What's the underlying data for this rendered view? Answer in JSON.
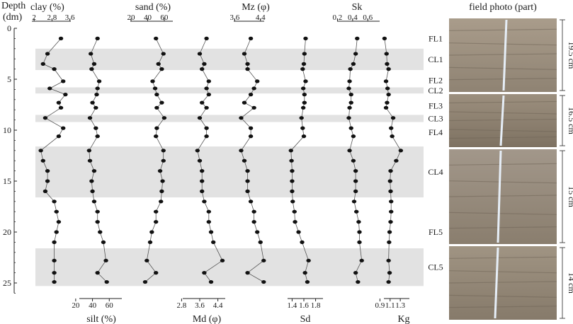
{
  "figure": {
    "depth_label_line1": "Depth",
    "depth_label_line2": "(dm)",
    "photo_title": "field photo (part)"
  },
  "chart_data": {
    "type": "line",
    "y": {
      "label": "Depth (dm)",
      "range": [
        0,
        26
      ],
      "ticks": [
        0,
        5,
        10,
        15,
        20,
        25
      ],
      "reversed": true
    },
    "depth": [
      1,
      2.5,
      3.5,
      4,
      5.2,
      5.9,
      6.5,
      7.3,
      7.8,
      8.8,
      9.8,
      10.6,
      12,
      13,
      14,
      15,
      16,
      17,
      18,
      19,
      20,
      21,
      22.8,
      24,
      24.9
    ],
    "bands": [
      {
        "label": "FL1",
        "depth": 1,
        "shaded": false
      },
      {
        "label": "CL1",
        "from": 2,
        "to": 4.1,
        "shaded": true
      },
      {
        "label": "FL2",
        "depth": 5.1,
        "shaded": false
      },
      {
        "label": "CL2",
        "from": 5.8,
        "to": 6.4,
        "shaded": true
      },
      {
        "label": "FL3",
        "depth": 7.6,
        "shaded": false
      },
      {
        "label": "CL3",
        "from": 8.5,
        "to": 9.2,
        "shaded": true
      },
      {
        "label": "FL4",
        "depth": 10.2,
        "shaded": false
      },
      {
        "label": "CL4",
        "from": 11.6,
        "to": 16.6,
        "shaded": true
      },
      {
        "label": "FL5",
        "depth": 20,
        "shaded": false
      },
      {
        "label": "CL5",
        "from": 21.6,
        "to": 25.3,
        "shaded": true
      }
    ],
    "panels": [
      {
        "key": "clay",
        "label": "clay (%)",
        "axis_pos": "top",
        "range": [
          1.9,
          3.8
        ],
        "ticks": [
          2,
          2.8,
          3.6
        ],
        "tick_labels": [
          "2",
          "2.8",
          "3.6"
        ],
        "values": [
          3.2,
          2.6,
          2.4,
          2.9,
          3.3,
          2.7,
          3.4,
          3.1,
          3.2,
          2.5,
          3.3,
          3.1,
          2.3,
          2.4,
          2.6,
          2.6,
          2.5,
          2.9,
          3.0,
          3.1,
          3.0,
          2.9,
          2.9,
          2.9,
          2.9
        ]
      },
      {
        "key": "silt",
        "label": "silt (%)",
        "axis_pos": "bottom",
        "range": [
          10,
          80
        ],
        "ticks": [
          20,
          40,
          60
        ],
        "tick_labels": [
          "20",
          "40",
          "60"
        ],
        "values": [
          46,
          38,
          42,
          39,
          48,
          46,
          45,
          40,
          44,
          37,
          44,
          46,
          36,
          37,
          42,
          39,
          40,
          42,
          46,
          46,
          49,
          53,
          56,
          46,
          57
        ]
      },
      {
        "key": "sand",
        "label": "sand (%)",
        "axis_pos": "top",
        "range": [
          14,
          78
        ],
        "ticks": [
          20,
          40,
          60
        ],
        "tick_labels": [
          "20",
          "40",
          "60"
        ],
        "values": [
          50,
          59,
          53,
          57,
          46,
          49,
          51,
          57,
          51,
          60,
          51,
          50,
          59,
          59,
          55,
          58,
          57,
          56,
          50,
          50,
          45,
          43,
          39,
          50,
          37
        ]
      },
      {
        "key": "md",
        "label": "Md (φ)",
        "axis_pos": "bottom",
        "range": [
          2.6,
          5.1
        ],
        "ticks": [
          2.8,
          3.6,
          4.4
        ],
        "tick_labels": [
          "2.8",
          "3.6",
          "4.4"
        ],
        "values": [
          3.9,
          3.6,
          3.8,
          3.7,
          4.0,
          3.9,
          4.0,
          3.7,
          3.9,
          3.6,
          3.9,
          3.9,
          3.5,
          3.6,
          3.7,
          3.7,
          3.7,
          3.8,
          4.0,
          4.0,
          4.1,
          4.2,
          4.6,
          3.8,
          4.1
        ]
      },
      {
        "key": "mz",
        "label": "Mz (φ)",
        "axis_pos": "top",
        "range": [
          3.35,
          5.0
        ],
        "ticks": [
          3.6,
          4.4
        ],
        "tick_labels": [
          "3.6",
          "4.4"
        ],
        "values": [
          4.1,
          3.9,
          4.0,
          4.0,
          4.3,
          4.2,
          4.1,
          3.9,
          4.2,
          3.8,
          4.1,
          4.1,
          3.8,
          3.9,
          4.0,
          4.0,
          4.0,
          4.1,
          4.2,
          4.2,
          4.3,
          4.4,
          4.5,
          4.0,
          4.5
        ]
      },
      {
        "key": "sd",
        "label": "Sd",
        "axis_pos": "bottom",
        "range": [
          1.25,
          1.95
        ],
        "ticks": [
          1.4,
          1.6,
          1.8
        ],
        "tick_labels": [
          "1.4",
          "1.6",
          "1.8"
        ],
        "values": [
          1.63,
          1.61,
          1.6,
          1.58,
          1.63,
          1.59,
          1.61,
          1.61,
          1.59,
          1.56,
          1.58,
          1.6,
          1.38,
          1.39,
          1.4,
          1.4,
          1.4,
          1.41,
          1.44,
          1.45,
          1.51,
          1.57,
          1.68,
          1.62,
          1.66
        ]
      },
      {
        "key": "sk",
        "label": "Sk",
        "axis_pos": "top",
        "range": [
          0.14,
          0.7
        ],
        "ticks": [
          0.2,
          0.4,
          0.6
        ],
        "tick_labels": [
          "0.2",
          "0.4",
          "0.6"
        ],
        "values": [
          0.46,
          0.44,
          0.41,
          0.37,
          0.36,
          0.35,
          0.38,
          0.38,
          0.36,
          0.35,
          0.38,
          0.41,
          0.36,
          0.41,
          0.44,
          0.44,
          0.44,
          0.42,
          0.45,
          0.48,
          0.49,
          0.49,
          0.52,
          0.44,
          0.47
        ]
      },
      {
        "key": "kg",
        "label": "Kg",
        "axis_pos": "bottom",
        "range": [
          0.88,
          1.34
        ],
        "ticks": [
          0.9,
          1.1,
          1.3
        ],
        "tick_labels": [
          "0.9",
          "1.1",
          "1.3"
        ],
        "values": [
          0.99,
          1.03,
          1.04,
          1.07,
          1.02,
          1.05,
          1.07,
          1.04,
          1.02,
          1.16,
          1.12,
          1.14,
          1.31,
          1.22,
          1.11,
          1.1,
          1.11,
          1.12,
          1.12,
          1.11,
          1.09,
          1.08,
          1.07,
          1.09,
          1.07
        ]
      }
    ],
    "photo_segments": [
      {
        "label": "19.5 cm"
      },
      {
        "label": "16.5 cm"
      },
      {
        "label": "15 cm"
      },
      {
        "label": "14 cm"
      }
    ]
  }
}
